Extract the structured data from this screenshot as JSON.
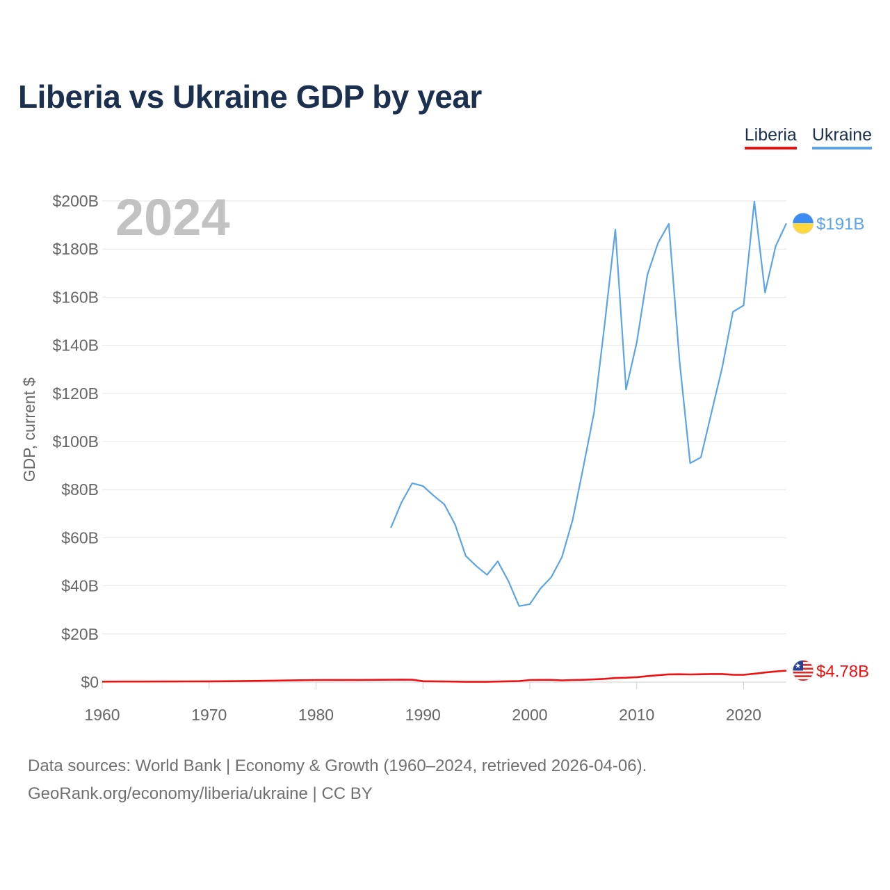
{
  "title": "Liberia vs Ukraine GDP by year",
  "legend": [
    {
      "name": "Liberia",
      "color": "#ee1111"
    },
    {
      "name": "Ukraine",
      "color": "#5ba4e6"
    }
  ],
  "footer": {
    "sources": "Data sources: World Bank | Economy & Growth (1960–2024, retrieved 2026-04-06).",
    "attribution": "GeoRank.org/economy/liberia/ukraine | CC BY"
  },
  "chart_data": {
    "type": "line",
    "title": "Liberia vs Ukraine GDP by year",
    "year_label": "2024",
    "xlabel": "",
    "ylabel": "GDP, current $",
    "xlim": [
      1960,
      2024
    ],
    "ylim": [
      0,
      200
    ],
    "y_unit": "billion USD",
    "x_ticks": [
      1960,
      1970,
      1980,
      1990,
      2000,
      2010,
      2020
    ],
    "y_ticks": [
      {
        "value": 0,
        "label": "$0"
      },
      {
        "value": 20,
        "label": "$20B"
      },
      {
        "value": 40,
        "label": "$40B"
      },
      {
        "value": 60,
        "label": "$60B"
      },
      {
        "value": 80,
        "label": "$80B"
      },
      {
        "value": 100,
        "label": "$100B"
      },
      {
        "value": 120,
        "label": "$120B"
      },
      {
        "value": 140,
        "label": "$140B"
      },
      {
        "value": 160,
        "label": "$160B"
      },
      {
        "value": 180,
        "label": "$180B"
      },
      {
        "value": 200,
        "label": "$200B"
      }
    ],
    "grid": true,
    "legend_position": "top-right",
    "series": [
      {
        "name": "Ukraine",
        "color": "#5ba4e6",
        "flag": "ukraine-flag-icon",
        "end_label": "$191B",
        "points": [
          [
            1987,
            64.1
          ],
          [
            1988,
            74.7
          ],
          [
            1989,
            82.7
          ],
          [
            1990,
            81.5
          ],
          [
            1991,
            77.5
          ],
          [
            1992,
            73.9
          ],
          [
            1993,
            65.6
          ],
          [
            1994,
            52.5
          ],
          [
            1995,
            48.2
          ],
          [
            1996,
            44.6
          ],
          [
            1997,
            50.2
          ],
          [
            1998,
            41.9
          ],
          [
            1999,
            31.6
          ],
          [
            2000,
            32.4
          ],
          [
            2001,
            38.9
          ],
          [
            2002,
            43.6
          ],
          [
            2003,
            51.9
          ],
          [
            2004,
            67.3
          ],
          [
            2005,
            89.3
          ],
          [
            2006,
            111.9
          ],
          [
            2007,
            148.7
          ],
          [
            2008,
            188.1
          ],
          [
            2009,
            121.6
          ],
          [
            2010,
            141.2
          ],
          [
            2011,
            169.3
          ],
          [
            2012,
            182.6
          ],
          [
            2013,
            190.5
          ],
          [
            2014,
            133.5
          ],
          [
            2015,
            91.0
          ],
          [
            2016,
            93.4
          ],
          [
            2017,
            112.2
          ],
          [
            2018,
            130.9
          ],
          [
            2019,
            153.9
          ],
          [
            2020,
            156.6
          ],
          [
            2021,
            199.8
          ],
          [
            2022,
            161.9
          ],
          [
            2023,
            181.2
          ],
          [
            2024,
            190.7
          ]
        ]
      },
      {
        "name": "Liberia",
        "color": "#ee1111",
        "flag": "liberia-flag-icon",
        "end_label": "$4.78B",
        "points": [
          [
            1960,
            0.19
          ],
          [
            1962,
            0.22
          ],
          [
            1964,
            0.24
          ],
          [
            1966,
            0.27
          ],
          [
            1968,
            0.3
          ],
          [
            1970,
            0.32
          ],
          [
            1972,
            0.38
          ],
          [
            1974,
            0.5
          ],
          [
            1976,
            0.62
          ],
          [
            1978,
            0.74
          ],
          [
            1980,
            0.86
          ],
          [
            1982,
            0.9
          ],
          [
            1984,
            0.89
          ],
          [
            1986,
            0.95
          ],
          [
            1988,
            1.05
          ],
          [
            1989,
            0.98
          ],
          [
            1990,
            0.38
          ],
          [
            1992,
            0.26
          ],
          [
            1994,
            0.12
          ],
          [
            1996,
            0.12
          ],
          [
            1998,
            0.36
          ],
          [
            1999,
            0.44
          ],
          [
            2000,
            0.88
          ],
          [
            2001,
            0.93
          ],
          [
            2002,
            0.93
          ],
          [
            2003,
            0.69
          ],
          [
            2004,
            0.88
          ],
          [
            2005,
            0.95
          ],
          [
            2006,
            1.12
          ],
          [
            2007,
            1.35
          ],
          [
            2008,
            1.71
          ],
          [
            2009,
            1.83
          ],
          [
            2010,
            2.04
          ],
          [
            2011,
            2.49
          ],
          [
            2012,
            2.87
          ],
          [
            2013,
            3.21
          ],
          [
            2014,
            3.27
          ],
          [
            2015,
            3.18
          ],
          [
            2016,
            3.26
          ],
          [
            2017,
            3.34
          ],
          [
            2018,
            3.35
          ],
          [
            2019,
            3.07
          ],
          [
            2020,
            3.04
          ],
          [
            2021,
            3.51
          ],
          [
            2022,
            4.0
          ],
          [
            2023,
            4.41
          ],
          [
            2024,
            4.78
          ]
        ]
      }
    ]
  }
}
